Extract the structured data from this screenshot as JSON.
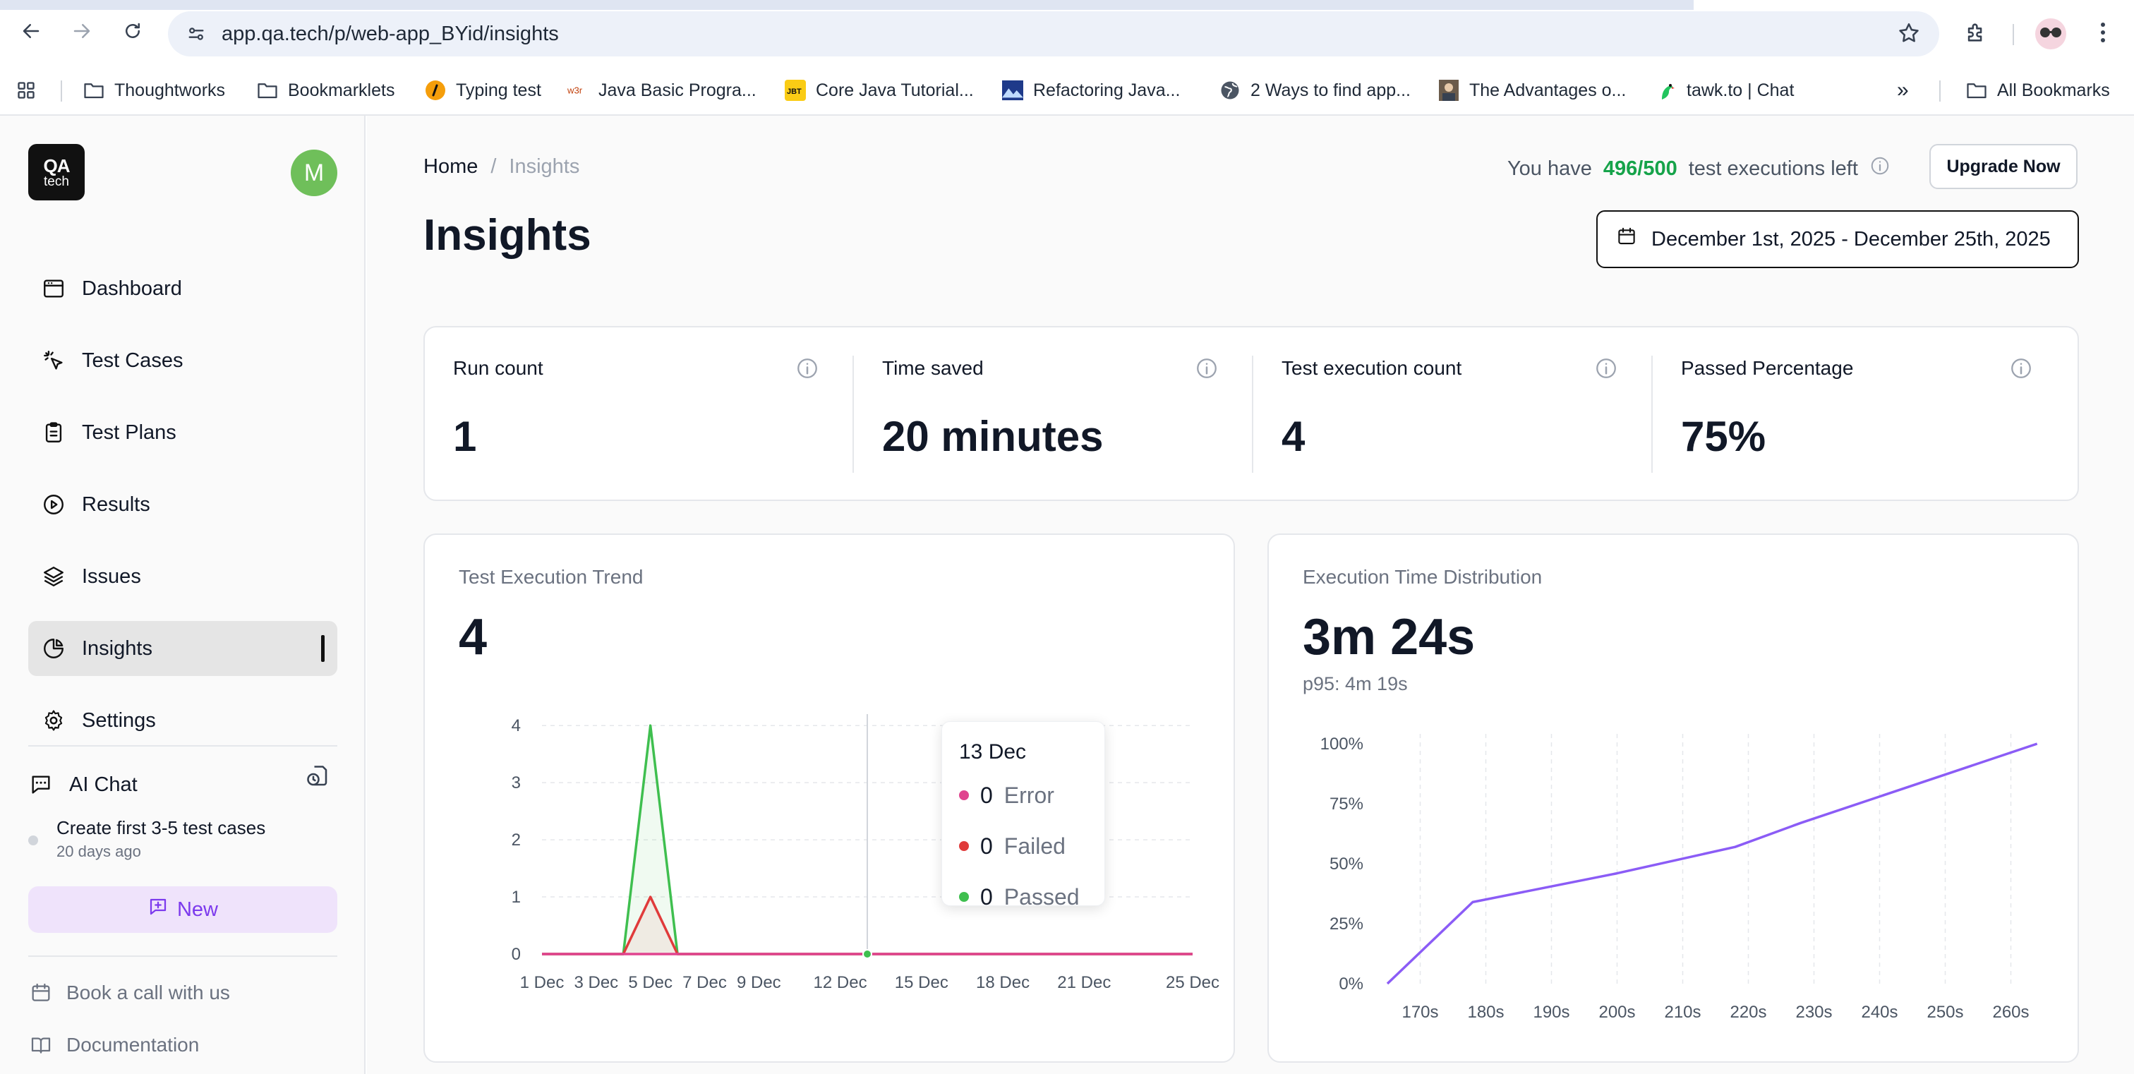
{
  "browser": {
    "url": "app.qa.tech/p/web-app_BYid/insights",
    "bookmarks": [
      {
        "label": "Thoughtworks",
        "icon": "folder-icon"
      },
      {
        "label": "Bookmarklets",
        "icon": "folder-icon"
      },
      {
        "label": "Typing test",
        "icon": "typing-icon"
      },
      {
        "label": "Java Basic Progra...",
        "icon": "w3r-icon"
      },
      {
        "label": "Core Java Tutorial...",
        "icon": "jbt-icon"
      },
      {
        "label": "Refactoring Java...",
        "icon": "mountain-icon"
      },
      {
        "label": "2 Ways to find app...",
        "icon": "globe-icon"
      },
      {
        "label": "The Advantages o...",
        "icon": "person-icon"
      },
      {
        "label": "tawk.to | Chat",
        "icon": "parrot-icon"
      }
    ],
    "all_bookmarks": "All Bookmarks",
    "overflow": "»"
  },
  "sidebar": {
    "logo_line1": "QA",
    "logo_line2": "tech",
    "avatar_initial": "M",
    "nav": [
      {
        "label": "Dashboard"
      },
      {
        "label": "Test Cases"
      },
      {
        "label": "Test Plans"
      },
      {
        "label": "Results"
      },
      {
        "label": "Issues"
      },
      {
        "label": "Insights"
      },
      {
        "label": "Settings"
      }
    ],
    "ai_chat": "AI Chat",
    "chat_item_title": "Create first 3-5 test cases",
    "chat_item_time": "20 days ago",
    "new_label": "New",
    "book_call": "Book a call with us",
    "documentation": "Documentation"
  },
  "header": {
    "breadcrumb_home": "Home",
    "breadcrumb_sep": "/",
    "breadcrumb_current": "Insights",
    "quota_prefix": "You have",
    "quota_value": "496/500",
    "quota_suffix": "test executions left",
    "upgrade": "Upgrade Now",
    "title": "Insights",
    "date_range": "December 1st, 2025 - December 25th, 2025"
  },
  "stats": [
    {
      "label": "Run count",
      "value": "1"
    },
    {
      "label": "Time saved",
      "value": "20 minutes"
    },
    {
      "label": "Test execution count",
      "value": "4"
    },
    {
      "label": "Passed Percentage",
      "value": "75%"
    }
  ],
  "trend": {
    "title": "Test Execution Trend",
    "value": "4",
    "tooltip": {
      "date": "13 Dec",
      "rows": [
        {
          "count": "0",
          "label": "Error",
          "color": "#e0448f"
        },
        {
          "count": "0",
          "label": "Failed",
          "color": "#e03b3b"
        },
        {
          "count": "0",
          "label": "Passed",
          "color": "#3fbf4f"
        }
      ]
    }
  },
  "distribution": {
    "title": "Execution Time Distribution",
    "value": "3m 24s",
    "sub": "p95: 4m 19s"
  },
  "chart_data": [
    {
      "type": "area",
      "title": "Test Execution Trend",
      "x_ticks": [
        "1 Dec",
        "3 Dec",
        "5 Dec",
        "7 Dec",
        "9 Dec",
        "12 Dec",
        "15 Dec",
        "18 Dec",
        "21 Dec",
        "25 Dec"
      ],
      "y_ticks": [
        0,
        1,
        2,
        3,
        4
      ],
      "ylim": [
        0,
        4.2
      ],
      "x": [
        "1 Dec",
        "2 Dec",
        "3 Dec",
        "4 Dec",
        "5 Dec",
        "6 Dec",
        "7 Dec",
        "8 Dec",
        "9 Dec",
        "10 Dec",
        "11 Dec",
        "12 Dec",
        "13 Dec",
        "14 Dec",
        "15 Dec",
        "16 Dec",
        "17 Dec",
        "18 Dec",
        "19 Dec",
        "20 Dec",
        "21 Dec",
        "22 Dec",
        "23 Dec",
        "24 Dec",
        "25 Dec"
      ],
      "series": [
        {
          "name": "Passed",
          "color": "#3fbf4f",
          "values": [
            0,
            0,
            0,
            0,
            4,
            0,
            0,
            0,
            0,
            0,
            0,
            0,
            0,
            0,
            0,
            0,
            0,
            0,
            0,
            0,
            0,
            0,
            0,
            0,
            0
          ]
        },
        {
          "name": "Failed",
          "color": "#e03b3b",
          "values": [
            0,
            0,
            0,
            0,
            1,
            0,
            0,
            0,
            0,
            0,
            0,
            0,
            0,
            0,
            0,
            0,
            0,
            0,
            0,
            0,
            0,
            0,
            0,
            0,
            0
          ]
        },
        {
          "name": "Error",
          "color": "#e0448f",
          "values": [
            0,
            0,
            0,
            0,
            0,
            0,
            0,
            0,
            0,
            0,
            0,
            0,
            0,
            0,
            0,
            0,
            0,
            0,
            0,
            0,
            0,
            0,
            0,
            0,
            0
          ]
        }
      ],
      "highlight": "13 Dec",
      "grid": true
    },
    {
      "type": "line",
      "title": "Execution Time Distribution",
      "x_ticks": [
        "170s",
        "180s",
        "190s",
        "200s",
        "210s",
        "220s",
        "230s",
        "240s",
        "250s",
        "260s"
      ],
      "y_ticks": [
        "0%",
        "25%",
        "50%",
        "75%",
        "100%"
      ],
      "xlim": [
        165,
        265
      ],
      "ylim": [
        0,
        100
      ],
      "series": [
        {
          "color": "#8b5cf6",
          "x": [
            165,
            178,
            200,
            218,
            228,
            264
          ],
          "y": [
            0,
            34,
            46,
            57,
            67,
            100
          ]
        }
      ],
      "grid": true
    }
  ]
}
